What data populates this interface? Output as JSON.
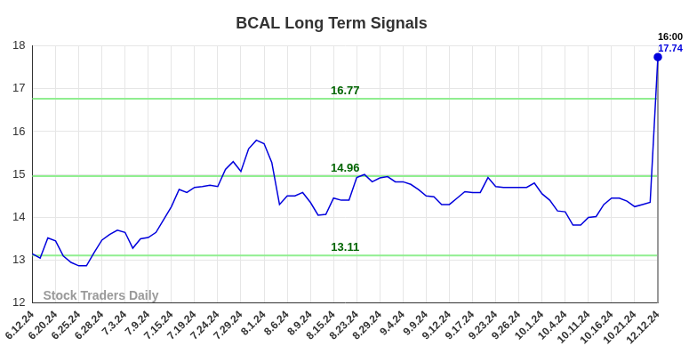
{
  "chart_data": {
    "type": "line",
    "title": "BCAL Long Term Signals",
    "watermark": "Stock Traders Daily",
    "last_time": "16:00",
    "categories": [
      "6.12.24",
      null,
      null,
      "6.20.24",
      null,
      null,
      "6.25.24",
      null,
      null,
      "6.28.24",
      null,
      null,
      "7.3.24",
      null,
      null,
      "7.9.24",
      null,
      null,
      "7.15.24",
      null,
      null,
      "7.19.24",
      null,
      null,
      "7.24.24",
      null,
      null,
      "7.29.24",
      null,
      null,
      "8.1.24",
      null,
      null,
      "8.6.24",
      null,
      null,
      "8.9.24",
      null,
      null,
      "8.15.24",
      null,
      null,
      "8.23.24",
      null,
      null,
      "8.29.24",
      null,
      null,
      "9.4.24",
      null,
      null,
      "9.9.24",
      null,
      null,
      "9.12.24",
      null,
      null,
      "9.17.24",
      null,
      null,
      "9.23.24",
      null,
      null,
      "9.26.24",
      null,
      null,
      "10.1.24",
      null,
      null,
      "10.4.24",
      null,
      null,
      "10.11.24",
      null,
      null,
      "10.16.24",
      null,
      null,
      "10.21.24",
      null,
      null,
      "12.12.24"
    ],
    "values": [
      13.15,
      13.05,
      13.52,
      13.45,
      13.1,
      12.95,
      12.87,
      12.87,
      13.18,
      13.47,
      13.6,
      13.7,
      13.65,
      13.28,
      13.5,
      13.53,
      13.65,
      13.95,
      14.25,
      14.65,
      14.58,
      14.7,
      14.72,
      14.75,
      14.72,
      15.12,
      15.3,
      15.07,
      15.6,
      15.8,
      15.72,
      15.28,
      14.3,
      14.5,
      14.5,
      14.58,
      14.35,
      14.05,
      14.07,
      14.45,
      14.4,
      14.4,
      14.93,
      15.0,
      14.83,
      14.92,
      14.95,
      14.83,
      14.83,
      14.77,
      14.65,
      14.5,
      14.48,
      14.3,
      14.3,
      14.45,
      14.6,
      14.58,
      14.58,
      14.93,
      14.72,
      14.7,
      14.7,
      14.7,
      14.7,
      14.8,
      14.55,
      14.4,
      14.15,
      14.13,
      13.82,
      13.82,
      14.0,
      14.02,
      14.3,
      14.45,
      14.45,
      14.38,
      14.25,
      14.3,
      14.35,
      17.74
    ],
    "color": "#0000dd",
    "hlines": [
      16.77,
      14.96,
      13.11
    ],
    "ylim": [
      12,
      18
    ],
    "yticks": [
      12,
      13,
      14,
      15,
      16,
      17,
      18
    ],
    "grid": true
  }
}
